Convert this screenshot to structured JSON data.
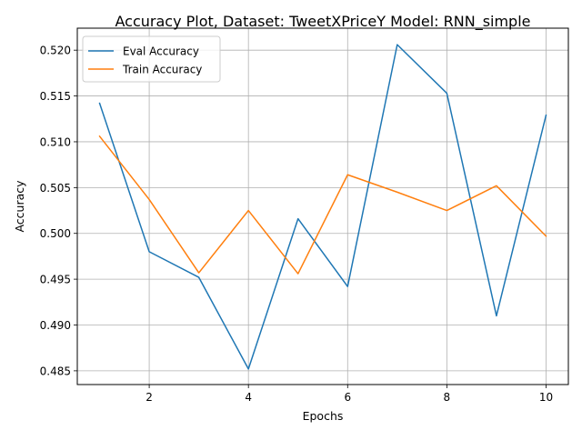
{
  "chart_data": {
    "type": "line",
    "title": "Accuracy Plot, Dataset: TweetXPriceY Model: RNN_simple",
    "xlabel": "Epochs",
    "ylabel": "Accuracy",
    "x": [
      1,
      2,
      3,
      4,
      5,
      6,
      7,
      8,
      9,
      10
    ],
    "xlim": [
      0.55,
      10.45
    ],
    "ylim": [
      0.4835,
      0.5224
    ],
    "xticks": [
      2,
      4,
      6,
      8,
      10
    ],
    "yticks": [
      0.485,
      0.49,
      0.495,
      0.5,
      0.505,
      0.51,
      0.515,
      0.52
    ],
    "grid": true,
    "legend_position": "top-left",
    "series": [
      {
        "name": "Eval Accuracy",
        "color": "#1f77b4",
        "values": [
          0.5142,
          0.498,
          0.4952,
          0.4852,
          0.5016,
          0.4942,
          0.5206,
          0.5153,
          0.491,
          0.5129
        ]
      },
      {
        "name": "Train Accuracy",
        "color": "#ff7f0e",
        "values": [
          0.5106,
          0.5037,
          0.4957,
          0.5025,
          0.4956,
          0.5064,
          0.5045,
          0.5025,
          0.5052,
          0.4997
        ]
      }
    ]
  }
}
